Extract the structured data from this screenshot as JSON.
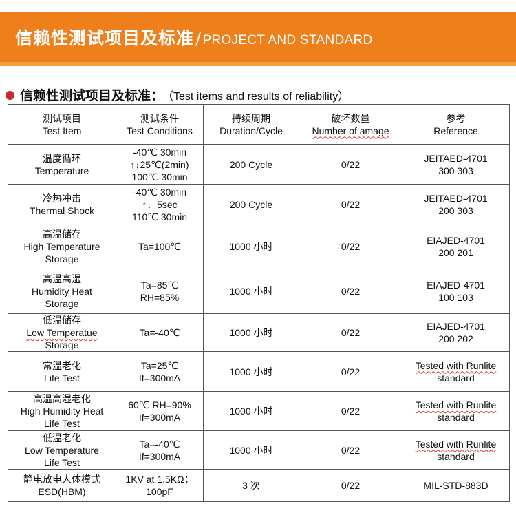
{
  "banner": {
    "title_zh": "信赖性测试项目及标准",
    "separator": "/",
    "title_en": "PROJECT AND STANDARD"
  },
  "section": {
    "title_zh": "信赖性测试项目及标准：",
    "title_en": "（Test items and results of reliability）"
  },
  "colors": {
    "banner": "#ef7f1a",
    "banner_stripe": "#f59c3f",
    "bullet": "#cc2a2a",
    "border": "#555555"
  },
  "table": {
    "headers": [
      {
        "zh": "测试项目",
        "en": "Test Item"
      },
      {
        "zh": "测试条件",
        "en": "Test Conditions"
      },
      {
        "zh": "持续周期",
        "en": "Duration/Cycle"
      },
      {
        "zh": "破坏数量",
        "en": "Number of amage"
      },
      {
        "zh": "参考",
        "en": "Reference"
      }
    ],
    "rows": [
      {
        "item": [
          "温度循环",
          "Temperature"
        ],
        "conditions": [
          "-40℃ 30min",
          "↑↓25℃(2min)",
          "100℃ 30min"
        ],
        "duration": "200 Cycle",
        "damage": "0/22",
        "reference": [
          "JEITAED-4701",
          "300 303"
        ]
      },
      {
        "item": [
          "冷热冲击",
          "Thermal Shock"
        ],
        "conditions": [
          "-40℃ 30min",
          "↑↓  5sec",
          "110℃ 30min"
        ],
        "duration": "200 Cycle",
        "damage": "0/22",
        "reference": [
          "JEITAED-4701",
          "200 303"
        ]
      },
      {
        "item": [
          "高温储存",
          "High Temperature",
          "Storage"
        ],
        "conditions": [
          "Ta=100℃"
        ],
        "duration": "1000 小时",
        "damage": "0/22",
        "reference": [
          "EIAJED-4701",
          "200 201"
        ]
      },
      {
        "item": [
          "高温高湿",
          "Humidity Heat",
          "Storage"
        ],
        "conditions": [
          "Ta=85℃",
          "RH=85%"
        ],
        "duration": "1000 小时",
        "damage": "0/22",
        "reference": [
          "EIAJED-4701",
          "100 103"
        ]
      },
      {
        "item": [
          "低温储存",
          "Low Temperatue",
          "Storage"
        ],
        "conditions": [
          "Ta=-40℃"
        ],
        "duration": "1000 小时",
        "damage": "0/22",
        "reference": [
          "EIAJED-4701",
          "200 202"
        ]
      },
      {
        "item": [
          "常温老化",
          "Life Test"
        ],
        "conditions": [
          "Ta=25℃",
          "If=300mA"
        ],
        "duration": "1000 小时",
        "damage": "0/22",
        "reference": [
          "Tested with Runlite",
          "standard"
        ]
      },
      {
        "item": [
          "高温高湿老化",
          "High Humidity Heat",
          "Life Test"
        ],
        "conditions": [
          "60℃ RH=90%",
          "If=300mA"
        ],
        "duration": "1000 小时",
        "damage": "0/22",
        "reference": [
          "Tested with Runlite",
          "standard"
        ]
      },
      {
        "item": [
          "低温老化",
          "Low Temperature",
          "Life Test"
        ],
        "conditions": [
          "Ta=-40℃",
          "If=300mA"
        ],
        "duration": "1000 小时",
        "damage": "0/22",
        "reference": [
          "Tested with Runlite",
          "standard"
        ]
      },
      {
        "item": [
          "静电放电人体模式",
          "ESD(HBM)"
        ],
        "conditions": [
          "1KV at 1.5KΩ；",
          "100pF"
        ],
        "duration": "3 次",
        "damage": "0/22",
        "reference": [
          "MIL-STD-883D"
        ]
      }
    ]
  }
}
